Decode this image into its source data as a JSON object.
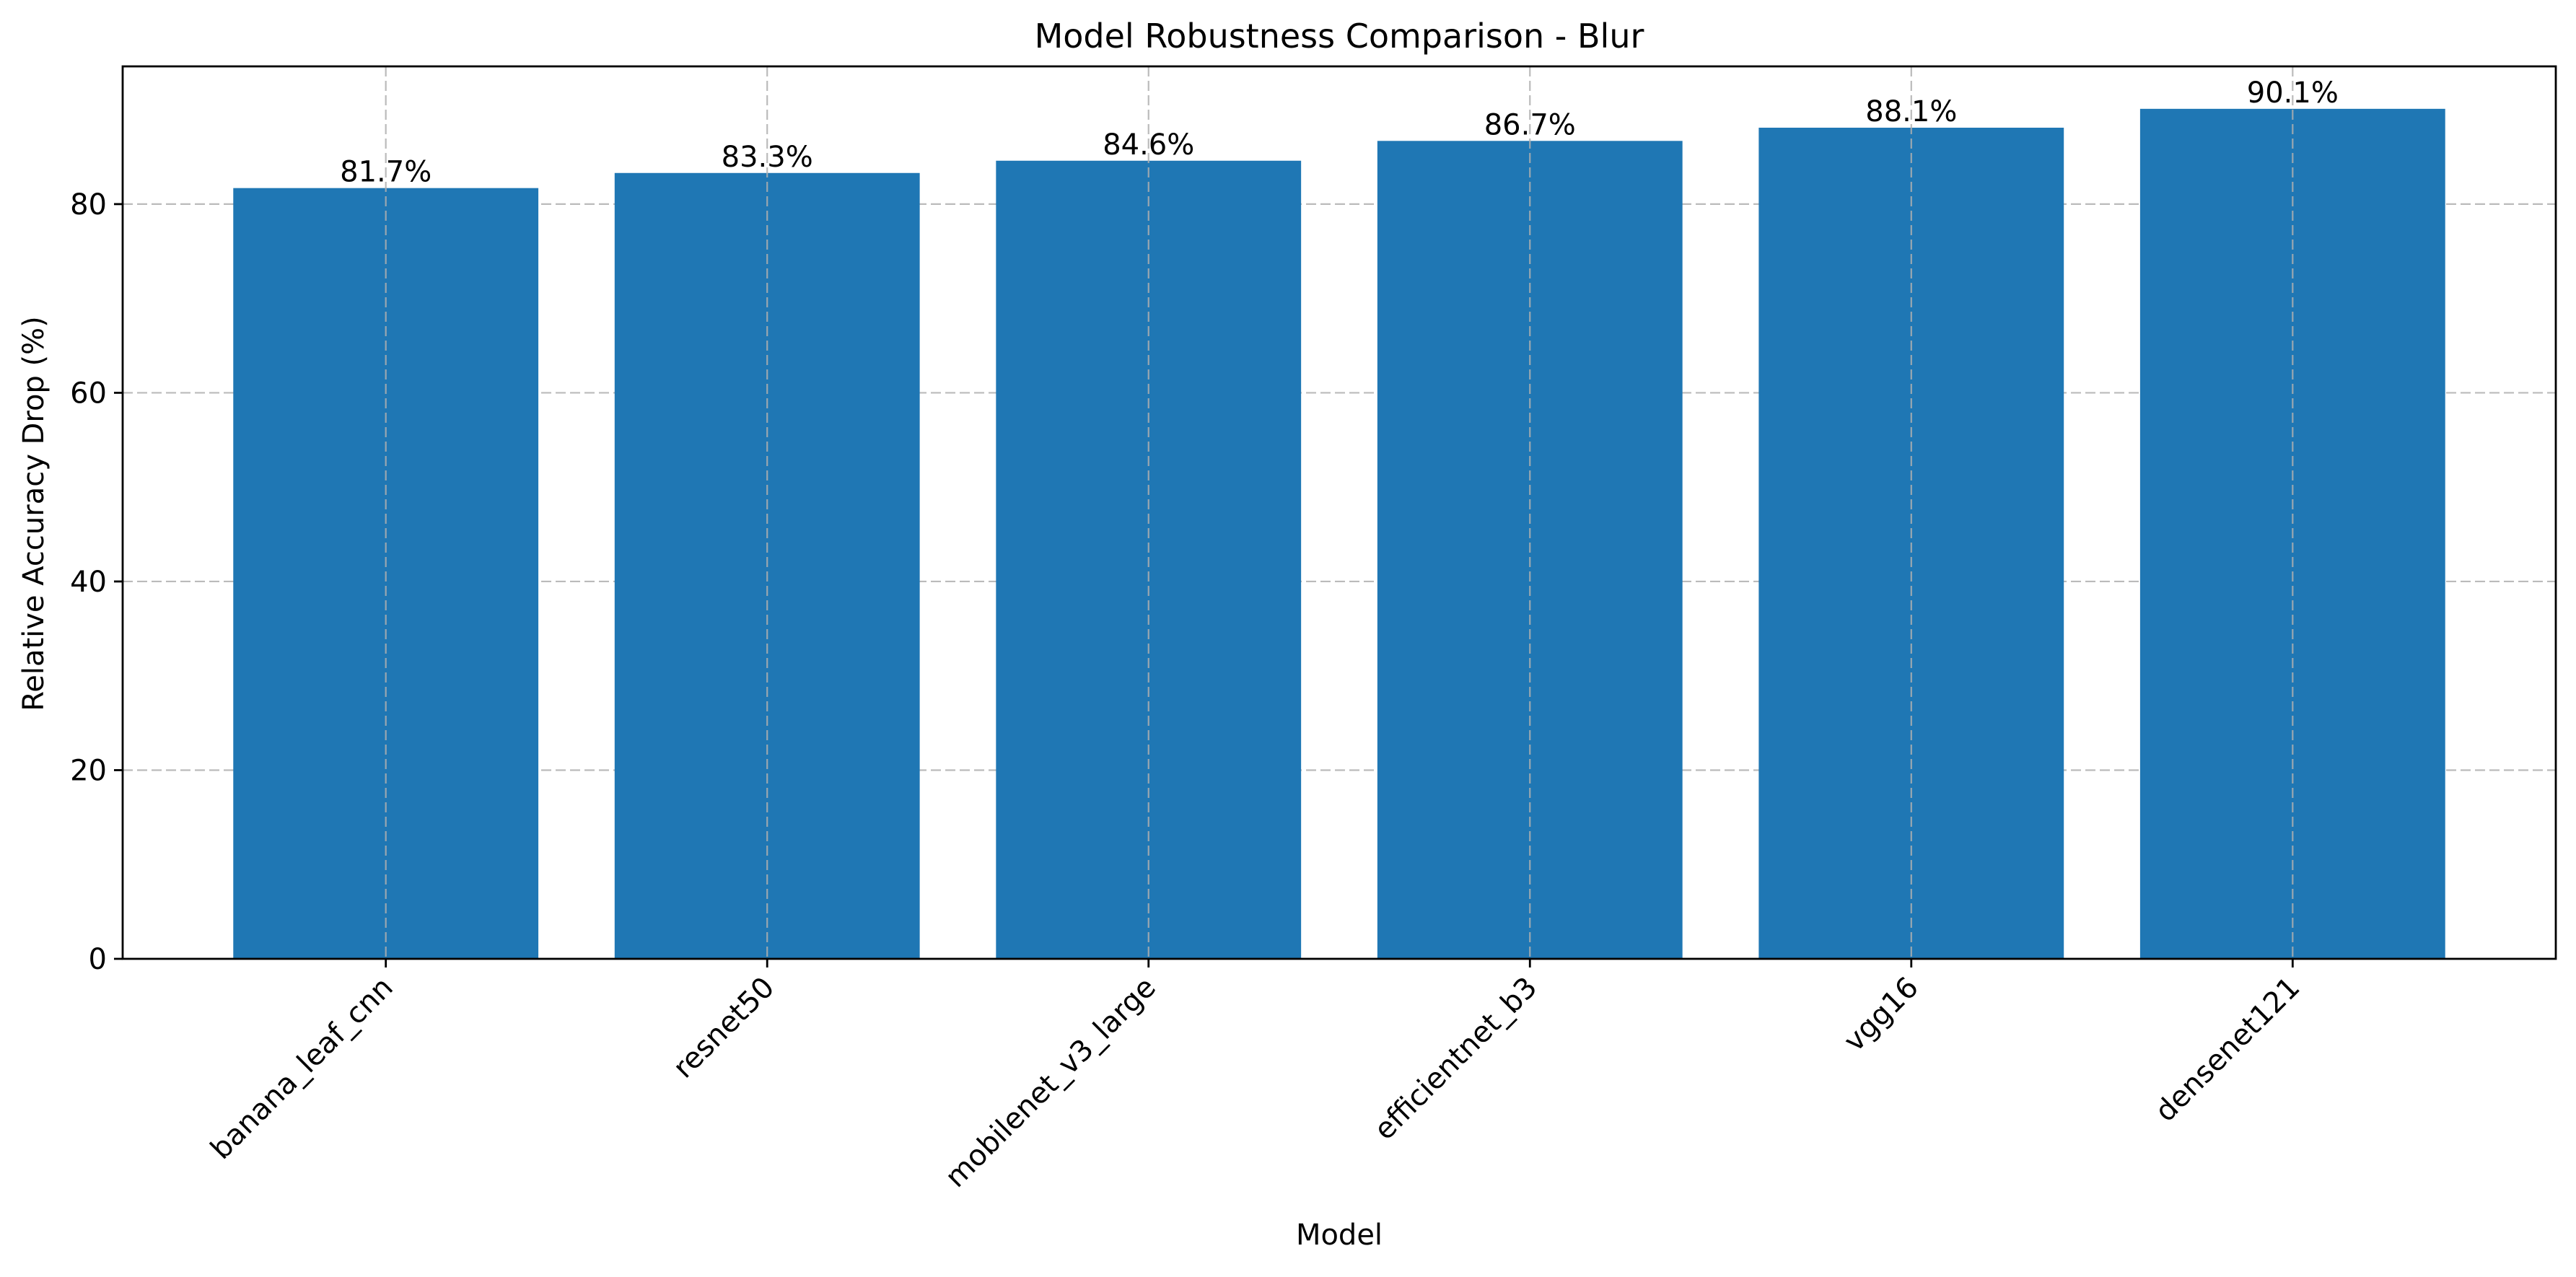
{
  "chart_data": {
    "type": "bar",
    "title": "Model Robustness Comparison - Blur",
    "xlabel": "Model",
    "ylabel": "Relative Accuracy Drop (%)",
    "categories": [
      "banana_leaf_cnn",
      "resnet50",
      "mobilenet_v3_large",
      "efficientnet_b3",
      "vgg16",
      "densenet121"
    ],
    "values": [
      81.7,
      83.3,
      84.6,
      86.7,
      88.1,
      90.1
    ],
    "data_labels": [
      "81.7%",
      "83.3%",
      "84.6%",
      "86.7%",
      "88.1%",
      "90.1%"
    ],
    "ylim": [
      0,
      94.6
    ],
    "yticks": [
      0,
      20,
      40,
      60,
      80
    ],
    "grid": true,
    "bar_color": "#1f77b4"
  }
}
